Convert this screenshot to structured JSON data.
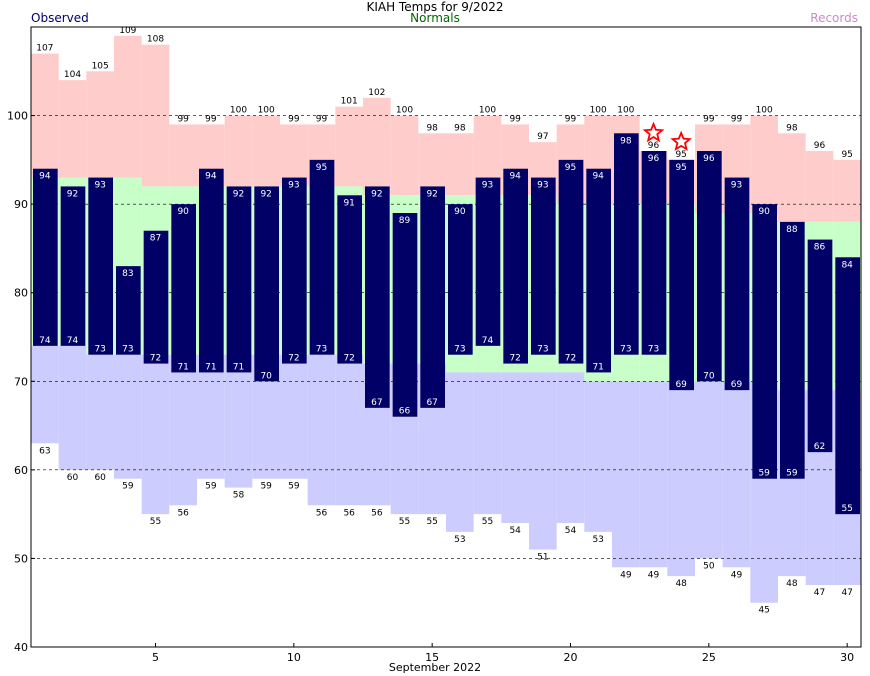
{
  "title": "KIAH Temps for 9/2022",
  "legend": {
    "observed": "Observed",
    "normals": "Normals",
    "records": "Records"
  },
  "colors": {
    "observed": "#000066",
    "normals": "#c8ffc8",
    "record_high": "#ffcccc",
    "record_low": "#ccccff",
    "record_marker": "#ff0000"
  },
  "chart_data": {
    "type": "bar",
    "xlabel": "September 2022",
    "xticks": [
      5,
      10,
      15,
      20,
      25,
      30
    ],
    "yticks": [
      40,
      50,
      60,
      70,
      80,
      90,
      100
    ],
    "xlim": [
      0.5,
      30.5
    ],
    "ylim": [
      40,
      110
    ],
    "grid": "dashed horizontal at 50, 60, 70, 80, 90, 100",
    "days": [
      1,
      2,
      3,
      4,
      5,
      6,
      7,
      8,
      9,
      10,
      11,
      12,
      13,
      14,
      15,
      16,
      17,
      18,
      19,
      20,
      21,
      22,
      23,
      24,
      25,
      26,
      27,
      28,
      29,
      30
    ],
    "record_high": [
      107,
      104,
      105,
      109,
      108,
      99,
      99,
      100,
      100,
      99,
      99,
      101,
      102,
      100,
      98,
      98,
      100,
      99,
      97,
      99,
      100,
      100,
      96,
      95,
      99,
      99,
      100,
      98,
      96,
      95
    ],
    "record_low": [
      63,
      60,
      60,
      59,
      55,
      56,
      59,
      58,
      59,
      59,
      56,
      56,
      56,
      55,
      55,
      53,
      55,
      54,
      51,
      54,
      53,
      49,
      49,
      48,
      50,
      49,
      45,
      48,
      47,
      47
    ],
    "normal_high": [
      93,
      93,
      93,
      93,
      92,
      92,
      92,
      92,
      92,
      92,
      92,
      92,
      91,
      91,
      91,
      91,
      91,
      91,
      91,
      90,
      90,
      90,
      90,
      90,
      89,
      89,
      89,
      88,
      88,
      88
    ],
    "normal_low": [
      74,
      74,
      73,
      73,
      73,
      73,
      73,
      73,
      73,
      73,
      73,
      73,
      72,
      72,
      72,
      71,
      71,
      71,
      71,
      71,
      70,
      70,
      70,
      70,
      70,
      70,
      70,
      69,
      69,
      69
    ],
    "observed_high": [
      94,
      92,
      93,
      83,
      87,
      90,
      94,
      92,
      92,
      93,
      95,
      91,
      92,
      89,
      92,
      90,
      93,
      94,
      93,
      95,
      94,
      98,
      96,
      95,
      96,
      93,
      90,
      88,
      86,
      84
    ],
    "observed_low": [
      74,
      74,
      73,
      73,
      72,
      71,
      71,
      71,
      70,
      72,
      73,
      72,
      67,
      66,
      67,
      73,
      74,
      72,
      73,
      72,
      71,
      73,
      73,
      69,
      70,
      69,
      59,
      59,
      62,
      55
    ],
    "record_set_days": [
      23,
      24
    ],
    "series": [
      {
        "name": "Observed"
      },
      {
        "name": "Normals"
      },
      {
        "name": "Records"
      }
    ]
  }
}
